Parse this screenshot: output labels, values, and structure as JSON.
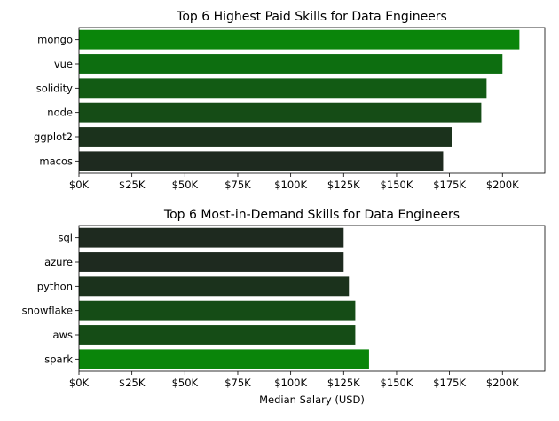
{
  "chart_data": [
    {
      "type": "bar",
      "orientation": "horizontal",
      "title": "Top 6 Highest Paid Skills for Data Engineers",
      "xlabel": "",
      "ylabel": "",
      "categories": [
        "mongo",
        "vue",
        "solidity",
        "node",
        "ggplot2",
        "macos"
      ],
      "values": [
        208000,
        200000,
        192500,
        190000,
        176000,
        172000
      ],
      "colors": [
        "#0a850a",
        "#0d6e10",
        "#125b14",
        "#154c16",
        "#1b321c",
        "#1e2a1f"
      ],
      "xlim": [
        0,
        220000
      ],
      "xticks": [
        0,
        25000,
        50000,
        75000,
        100000,
        125000,
        150000,
        175000,
        200000
      ],
      "xtick_labels": [
        "$0K",
        "$25K",
        "$50K",
        "$75K",
        "$100K",
        "$125K",
        "$150K",
        "$175K",
        "$200K"
      ],
      "grid": false
    },
    {
      "type": "bar",
      "orientation": "horizontal",
      "title": "Top 6 Most-in-Demand Skills for Data Engineers",
      "xlabel": "Median Salary (USD)",
      "ylabel": "",
      "categories": [
        "sql",
        "azure",
        "python",
        "snowflake",
        "aws",
        "spark"
      ],
      "values": [
        125000,
        125000,
        127500,
        130500,
        130500,
        137000
      ],
      "colors": [
        "#1e2a1f",
        "#1e2a1f",
        "#1b321c",
        "#154c16",
        "#154c16",
        "#0a850a"
      ],
      "xlim": [
        0,
        220000
      ],
      "xticks": [
        0,
        25000,
        50000,
        75000,
        100000,
        125000,
        150000,
        175000,
        200000
      ],
      "xtick_labels": [
        "$0K",
        "$25K",
        "$50K",
        "$75K",
        "$100K",
        "$125K",
        "$150K",
        "$175K",
        "$200K"
      ],
      "grid": false
    }
  ]
}
